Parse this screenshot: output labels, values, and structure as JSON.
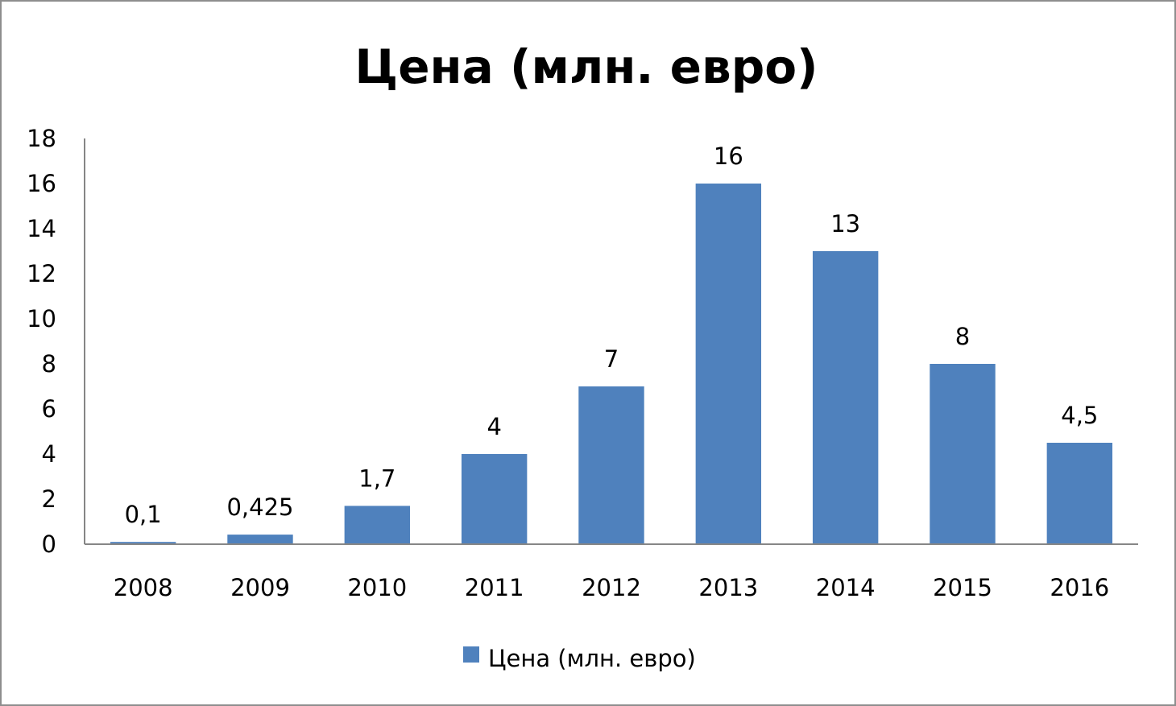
{
  "chart_data": {
    "type": "bar",
    "title": "Цена (млн. евро)",
    "categories": [
      "2008",
      "2009",
      "2010",
      "2011",
      "2012",
      "2013",
      "2014",
      "2015",
      "2016"
    ],
    "series": [
      {
        "name": "Цена (млн. евро)",
        "values": [
          0.1,
          0.425,
          1.7,
          4,
          7,
          16,
          13,
          8,
          4.5
        ],
        "labels": [
          "0,1",
          "0,425",
          "1,7",
          "4",
          "7",
          "16",
          "13",
          "8",
          "4,5"
        ],
        "color": "#4f81bd"
      }
    ],
    "ylim": [
      0,
      18
    ],
    "yticks": [
      0,
      2,
      4,
      6,
      8,
      10,
      12,
      14,
      16,
      18
    ],
    "grid": false,
    "legend": "bottom-center"
  }
}
